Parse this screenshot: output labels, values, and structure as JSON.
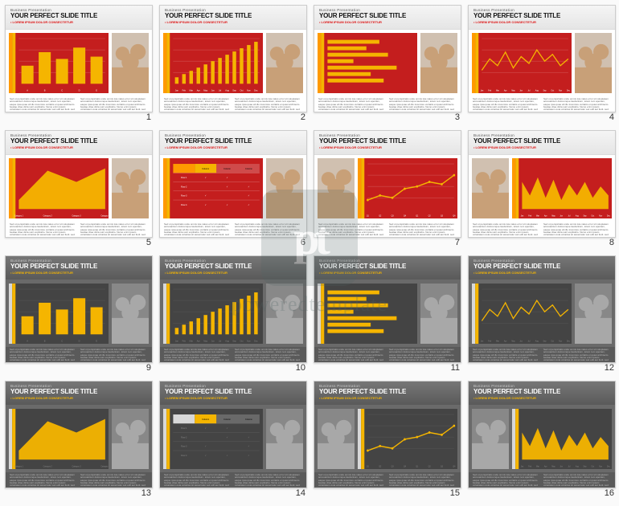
{
  "watermark": {
    "logo_text": "pt",
    "label": "poweredtemplate"
  },
  "common": {
    "pretitle": "Business  Presentation",
    "title": "YOUR PERFECT SLIDE TITLE",
    "subtitle": "• LOREM IPSUM DOLOR CONSECTETUR",
    "footer_lorem": "Sed ut perspiciatis unde omnis iste natus error sit voluptatem accusantium doloremque laudantium, totam rem aperiam, eaque ipsa quae ab illo inventore veritatis et quasi architecto beatae vitae dicta sunt explicabo. Nemo enim ipsam voluptatem quia voluptas sit aspernatur aut odit aut fugit, sed quia consequuntur magni dolores eos qui ratione."
  },
  "palette": {
    "light": {
      "header_bg": "#eeeeee",
      "chart_bg": "#c41e1e",
      "accent": "#f5b500",
      "accent2": "#ff9900",
      "grid": "#ffffff",
      "series": "#f5b500"
    },
    "dark": {
      "header_bg": "#666666",
      "chart_bg": "#444444",
      "accent": "#f5b500",
      "accent2": "#d8d8d8",
      "grid": "#888888",
      "series": "#f5b500"
    }
  },
  "slides": [
    {
      "n": 1,
      "theme": "light",
      "photo": "right",
      "chart": {
        "type": "bar",
        "categories": [
          "A",
          "B",
          "C",
          "D",
          "E"
        ],
        "values": [
          40,
          70,
          55,
          80,
          60
        ],
        "ylim": [
          0,
          100
        ]
      }
    },
    {
      "n": 2,
      "theme": "light",
      "photo": "right",
      "chart": {
        "type": "bar",
        "categories": [
          "Jan",
          "Feb",
          "Mar",
          "Apr",
          "May",
          "Jun",
          "Jul",
          "Aug",
          "Sep",
          "Oct",
          "Nov",
          "Dec"
        ],
        "values": [
          10,
          15,
          20,
          25,
          30,
          35,
          40,
          45,
          50,
          55,
          60,
          65
        ],
        "ylim": [
          0,
          70
        ],
        "thin": true
      }
    },
    {
      "n": 3,
      "theme": "light",
      "photo": "right",
      "chart": {
        "type": "hbar",
        "categories": [
          "A",
          "B",
          "C",
          "D",
          "E",
          "F",
          "G"
        ],
        "values": [
          60,
          45,
          70,
          30,
          80,
          50,
          65
        ],
        "xlim": [
          0,
          100
        ]
      }
    },
    {
      "n": 4,
      "theme": "light",
      "photo": "right",
      "chart": {
        "type": "line",
        "categories": [
          "Jan",
          "Feb",
          "Mar",
          "Apr",
          "May",
          "Jun",
          "Jul",
          "Aug",
          "Sep",
          "Oct",
          "Nov",
          "Dec"
        ],
        "values": [
          30,
          55,
          40,
          70,
          35,
          60,
          45,
          75,
          50,
          65,
          40,
          55
        ],
        "ylim": [
          0,
          100
        ]
      }
    },
    {
      "n": 5,
      "theme": "light",
      "photo": "right",
      "chart": {
        "type": "area",
        "categories": [
          "Category 1",
          "Category 2",
          "Category 3",
          "Category 4"
        ],
        "values": [
          20,
          85,
          60,
          90
        ],
        "ylim": [
          0,
          100
        ]
      }
    },
    {
      "n": 6,
      "theme": "light",
      "photo": "right",
      "chart": {
        "type": "table",
        "cols": [
          "",
          "Column",
          "Column",
          "Column"
        ],
        "rows": [
          [
            "Row 1",
            "✓",
            "✓",
            ""
          ],
          [
            "Row 2",
            "",
            "✓",
            "✓"
          ],
          [
            "Row 3",
            "✓",
            "",
            "✓"
          ],
          [
            "Row 4",
            "✓",
            "✓",
            "✓"
          ]
        ]
      }
    },
    {
      "n": 7,
      "theme": "light",
      "photo": "left",
      "chart": {
        "type": "line",
        "categories": [
          "Q1",
          "Q2",
          "Q3",
          "Q4",
          "Q1",
          "Q2",
          "Q3",
          "Q4"
        ],
        "values": [
          20,
          30,
          25,
          45,
          50,
          60,
          55,
          75
        ],
        "ylim": [
          0,
          100
        ],
        "markers": true
      }
    },
    {
      "n": 8,
      "theme": "light",
      "photo": "left",
      "chart": {
        "type": "area-jag",
        "categories": [
          "Jan",
          "Feb",
          "Mar",
          "Apr",
          "May",
          "Jun",
          "Jul",
          "Aug",
          "Sep",
          "Oct",
          "Nov",
          "Dec"
        ],
        "values": [
          60,
          30,
          70,
          25,
          65,
          20,
          55,
          30,
          60,
          25,
          50,
          30
        ],
        "ylim": [
          0,
          100
        ]
      }
    },
    {
      "n": 9,
      "theme": "dark",
      "photo": "right",
      "chart": {
        "type": "bar",
        "categories": [
          "A",
          "B",
          "C",
          "D",
          "E"
        ],
        "values": [
          40,
          70,
          55,
          80,
          60
        ],
        "ylim": [
          0,
          100
        ]
      }
    },
    {
      "n": 10,
      "theme": "dark",
      "photo": "right",
      "chart": {
        "type": "bar",
        "categories": [
          "Jan",
          "Feb",
          "Mar",
          "Apr",
          "May",
          "Jun",
          "Jul",
          "Aug",
          "Sep",
          "Oct",
          "Nov",
          "Dec"
        ],
        "values": [
          10,
          15,
          20,
          25,
          30,
          35,
          40,
          45,
          50,
          55,
          60,
          65
        ],
        "ylim": [
          0,
          70
        ],
        "thin": true
      }
    },
    {
      "n": 11,
      "theme": "dark",
      "photo": "right",
      "chart": {
        "type": "hbar",
        "categories": [
          "A",
          "B",
          "C",
          "D",
          "E",
          "F",
          "G"
        ],
        "values": [
          60,
          45,
          70,
          30,
          80,
          50,
          65
        ],
        "xlim": [
          0,
          100
        ]
      }
    },
    {
      "n": 12,
      "theme": "dark",
      "photo": "right",
      "chart": {
        "type": "line",
        "categories": [
          "Jan",
          "Feb",
          "Mar",
          "Apr",
          "May",
          "Jun",
          "Jul",
          "Aug",
          "Sep",
          "Oct",
          "Nov",
          "Dec"
        ],
        "values": [
          30,
          55,
          40,
          70,
          35,
          60,
          45,
          75,
          50,
          65,
          40,
          55
        ],
        "ylim": [
          0,
          100
        ]
      }
    },
    {
      "n": 13,
      "theme": "dark",
      "photo": "right",
      "chart": {
        "type": "area",
        "categories": [
          "Category 1",
          "Category 2",
          "Category 3",
          "Category 4"
        ],
        "values": [
          20,
          85,
          60,
          90
        ],
        "ylim": [
          0,
          100
        ]
      }
    },
    {
      "n": 14,
      "theme": "dark",
      "photo": "right",
      "chart": {
        "type": "table",
        "cols": [
          "",
          "Column",
          "Column",
          "Column"
        ],
        "rows": [
          [
            "Row 1",
            "✓",
            "✓",
            ""
          ],
          [
            "Row 2",
            "",
            "✓",
            "✓"
          ],
          [
            "Row 3",
            "✓",
            "",
            "✓"
          ],
          [
            "Row 4",
            "✓",
            "✓",
            "✓"
          ]
        ]
      }
    },
    {
      "n": 15,
      "theme": "dark",
      "photo": "left",
      "chart": {
        "type": "line",
        "categories": [
          "Q1",
          "Q2",
          "Q3",
          "Q4",
          "Q1",
          "Q2",
          "Q3",
          "Q4"
        ],
        "values": [
          20,
          30,
          25,
          45,
          50,
          60,
          55,
          75
        ],
        "ylim": [
          0,
          100
        ],
        "markers": true
      }
    },
    {
      "n": 16,
      "theme": "dark",
      "photo": "left",
      "chart": {
        "type": "area-jag",
        "categories": [
          "Jan",
          "Feb",
          "Mar",
          "Apr",
          "May",
          "Jun",
          "Jul",
          "Aug",
          "Sep",
          "Oct",
          "Nov",
          "Dec"
        ],
        "values": [
          60,
          30,
          70,
          25,
          65,
          20,
          55,
          30,
          60,
          25,
          50,
          30
        ],
        "ylim": [
          0,
          100
        ]
      }
    }
  ]
}
